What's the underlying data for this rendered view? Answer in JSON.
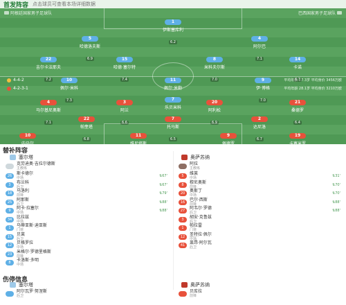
{
  "header": {
    "title": "首发阵容",
    "subtitle": "点击球员可查看本场详细数据"
  },
  "home": {
    "name": "阿根廷国家男子足球队",
    "formation": "4-4-2",
    "home_stat": "4-2-3-1",
    "avg_line": "平均年龄 27.3岁",
    "avg_value": "平均身价 3456万欧"
  },
  "away": {
    "name": "巴西国家男子足球队",
    "formation": "4-3-3",
    "avg_line": "平均年龄 28.1岁",
    "avg_value": "平均身价 3210万欧"
  },
  "field": {
    "center_label": "球场中圈"
  },
  "home_players": [
    {
      "num": "1",
      "name": "伊斯塞库利",
      "rating": "6.2"
    },
    {
      "num": "5",
      "name": "哈德洛夫斯",
      "rating": "6.9"
    },
    {
      "num": "4",
      "name": "阿尔巴",
      "rating": "7.1"
    },
    {
      "num": "22",
      "name": "吉尔卡法耶夫",
      "rating": "7.2"
    },
    {
      "num": "15",
      "name": "哈德·塞尔特",
      "rating": "7.4"
    },
    {
      "num": "8",
      "name": "米科夫尔斯",
      "rating": "7.0"
    },
    {
      "num": "14",
      "name": "卡诺",
      "rating": "6.7"
    },
    {
      "num": "10",
      "name": "佩尔·米科",
      "rating": "7.3"
    },
    {
      "num": "11",
      "name": "佩尔·米勒",
      "rating": "6.8"
    },
    {
      "num": "9",
      "name": "伊·博格",
      "rating": "7.0"
    },
    {
      "num": "7",
      "name": "乐贝米科",
      "rating": "6.6"
    }
  ],
  "away_players": [
    {
      "num": "10",
      "name": "内马尔",
      "rating": "7.3"
    },
    {
      "num": "11",
      "name": "维尼修斯",
      "rating": "7.0"
    },
    {
      "num": "9",
      "name": "佩德罗",
      "rating": "6.9"
    },
    {
      "num": "19",
      "name": "卡塞米罗",
      "rating": "7.2"
    },
    {
      "num": "22",
      "name": "帕奎塔",
      "rating": "6.8"
    },
    {
      "num": "7",
      "name": "托马斯",
      "rating": "6.5"
    },
    {
      "num": "2",
      "name": "达尼洛",
      "rating": "6.7"
    },
    {
      "num": "4",
      "name": "马尔基尼奥斯",
      "rating": "7.1"
    },
    {
      "num": "3",
      "name": "阿兰",
      "rating": "6.6"
    },
    {
      "num": "20",
      "name": "阿利松",
      "rating": "6.9"
    },
    {
      "num": "21",
      "name": "桑德罗",
      "rating": "6.4"
    }
  ],
  "subs": {
    "title": "替补阵容",
    "left_team": "塞尔塔",
    "right_team": "奥萨苏纳",
    "left_coach": {
      "name": "克劳迪奥·吉拉尔德斯",
      "role": "主教练"
    },
    "right_coach": {
      "name": "阿拉",
      "role": "主教练"
    },
    "left": [
      {
        "num": "26",
        "name": "斯卡德尔",
        "role": "中场",
        "time": "67'"
      },
      {
        "num": "3",
        "name": "布兰科",
        "role": "后卫",
        "time": "67'"
      },
      {
        "num": "18",
        "name": "马洛利",
        "role": "前锋",
        "time": "79'"
      },
      {
        "num": "25",
        "name": "阿那斯",
        "role": "后卫",
        "time": "88'"
      },
      {
        "num": "9",
        "name": "阿卡·拉塞尔",
        "role": "中场",
        "time": "88'"
      },
      {
        "num": "34",
        "name": "比拉兹",
        "role": "中场",
        "time": ""
      },
      {
        "num": "1",
        "name": "马蒂亚斯·迪亚斯",
        "role": "门将",
        "time": ""
      },
      {
        "num": "15",
        "name": "贝莱",
        "role": "后卫",
        "time": ""
      },
      {
        "num": "12",
        "name": "贝格罗拉",
        "role": "中场",
        "time": ""
      },
      {
        "num": "23",
        "name": "米格尔·罗德里格斯",
        "role": "前锋",
        "time": ""
      },
      {
        "num": "8",
        "name": "卡洛斯·多明",
        "role": "中场",
        "time": ""
      },
      {
        "num": "13",
        "name": "拉戈",
        "role": "门将",
        "time": ""
      }
    ],
    "right": [
      {
        "num": "5",
        "name": "维莱",
        "role": "中场",
        "time": "31'"
      },
      {
        "num": "8",
        "name": "穆尼奥斯",
        "role": "前锋",
        "time": "70'"
      },
      {
        "num": "20",
        "name": "奥斯丁",
        "role": "中场",
        "time": "70'"
      },
      {
        "num": "16",
        "name": "巴尔·西斯",
        "role": "前锋",
        "time": "88'"
      },
      {
        "num": "27",
        "name": "阿韦尔·罗德",
        "role": "后卫",
        "time": "88'"
      },
      {
        "num": "3",
        "name": "胡安·克鲁兹",
        "role": "后卫",
        "time": ""
      },
      {
        "num": "1",
        "name": "帕拉雷",
        "role": "门将",
        "time": ""
      },
      {
        "num": "12",
        "name": "圣特拉·佩尔",
        "role": "中场",
        "time": ""
      },
      {
        "num": "41",
        "name": "莱昂·阿尔瓦",
        "role": "后卫",
        "time": ""
      }
    ]
  },
  "injuries": {
    "title": "伤停信息",
    "left_team": "塞尔塔",
    "right_team": "奥萨苏纳",
    "left_player": {
      "name": "阿尔瓦罗·努涅斯",
      "role": "后卫"
    },
    "right_player": {
      "name": "贝库拉",
      "role": "前锋"
    }
  }
}
